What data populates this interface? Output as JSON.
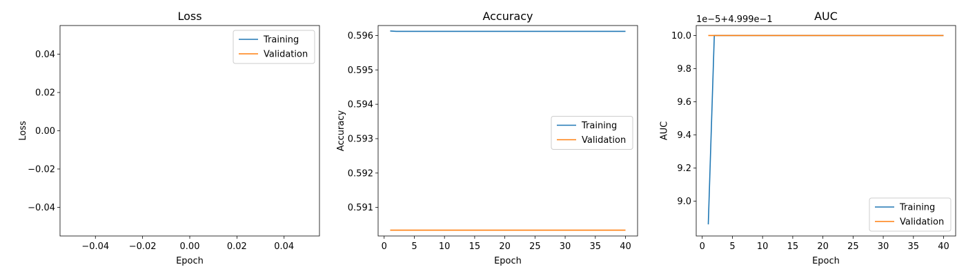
{
  "colors": {
    "training": "#1f77b4",
    "validation": "#ff7f0e"
  },
  "chart_data": [
    {
      "type": "line",
      "title": "Loss",
      "xlabel": "Epoch",
      "ylabel": "Loss",
      "xlim": [
        -0.055,
        0.055
      ],
      "ylim": [
        -0.055,
        0.055
      ],
      "xticks": [
        -0.04,
        -0.02,
        0.0,
        0.02,
        0.04
      ],
      "xtick_labels": [
        "−0.04",
        "−0.02",
        "0.00",
        "0.02",
        "0.04"
      ],
      "yticks": [
        -0.04,
        -0.02,
        0.0,
        0.02,
        0.04
      ],
      "ytick_labels": [
        "−0.04",
        "−0.02",
        "0.00",
        "0.02",
        "0.04"
      ],
      "offset_text": "",
      "legend": "top-right",
      "grid": false,
      "series": [
        {
          "name": "Training",
          "x": [],
          "y": []
        },
        {
          "name": "Validation",
          "x": [],
          "y": []
        }
      ]
    },
    {
      "type": "line",
      "title": "Accuracy",
      "xlabel": "Epoch",
      "ylabel": "Accuracy",
      "xlim": [
        -1,
        42
      ],
      "ylim": [
        0.59017,
        0.59629
      ],
      "xticks": [
        0,
        5,
        10,
        15,
        20,
        25,
        30,
        35,
        40
      ],
      "xtick_labels": [
        "0",
        "5",
        "10",
        "15",
        "20",
        "25",
        "30",
        "35",
        "40"
      ],
      "yticks": [
        0.591,
        0.592,
        0.593,
        0.594,
        0.595,
        0.596
      ],
      "ytick_labels": [
        "0.591",
        "0.592",
        "0.593",
        "0.594",
        "0.595",
        "0.596"
      ],
      "offset_text": "",
      "legend": "center-right",
      "grid": false,
      "series": [
        {
          "name": "Training",
          "x": [
            1,
            2,
            40
          ],
          "y": [
            0.59613,
            0.59612,
            0.59612
          ]
        },
        {
          "name": "Validation",
          "x": [
            1,
            40
          ],
          "y": [
            0.59034,
            0.59034
          ]
        }
      ]
    },
    {
      "type": "line",
      "title": "AUC",
      "xlabel": "Epoch",
      "ylabel": "AUC",
      "xlim": [
        -1,
        42
      ],
      "ylim": [
        8.79,
        10.06
      ],
      "xticks": [
        0,
        5,
        10,
        15,
        20,
        25,
        30,
        35,
        40
      ],
      "xtick_labels": [
        "0",
        "5",
        "10",
        "15",
        "20",
        "25",
        "30",
        "35",
        "40"
      ],
      "yticks": [
        9.0,
        9.2,
        9.4,
        9.6,
        9.8,
        10.0
      ],
      "ytick_labels": [
        "9.0",
        "9.2",
        "9.4",
        "9.6",
        "9.8",
        "10.0"
      ],
      "offset_text": "1e−5+4.999e−1",
      "legend": "bottom-right",
      "grid": false,
      "series": [
        {
          "name": "Training",
          "x": [
            1,
            2,
            40
          ],
          "y": [
            8.86,
            10.0,
            10.0
          ]
        },
        {
          "name": "Validation",
          "x": [
            1,
            40
          ],
          "y": [
            10.0,
            10.0
          ]
        }
      ]
    }
  ]
}
